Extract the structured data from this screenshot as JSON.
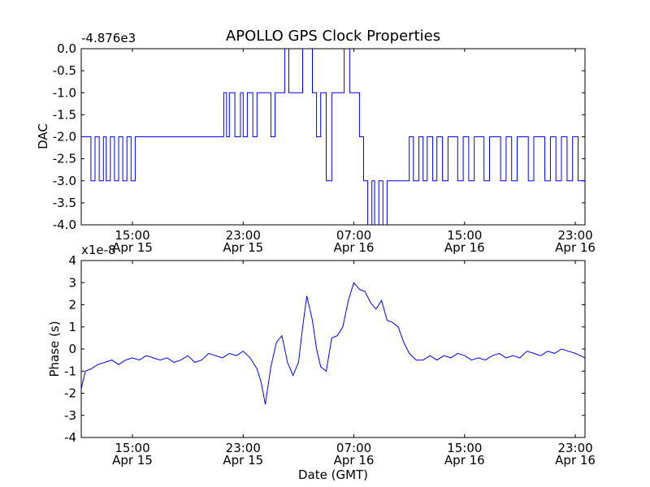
{
  "chart_data": [
    {
      "type": "line",
      "title": "APOLLO GPS Clock Properties",
      "ylabel": "DAC",
      "xlabel": "",
      "offset_label": "-4.876e3",
      "ylim": [
        -4.0,
        0.0
      ],
      "xlim_hours": [
        11.3,
        47.7
      ],
      "yticks": [
        0.0,
        -0.5,
        -1.0,
        -1.5,
        -2.0,
        -2.5,
        -3.0,
        -3.5,
        -4.0
      ],
      "ytick_labels": [
        "0.0",
        "-0.5",
        "-1.0",
        "-1.5",
        "-2.0",
        "-2.5",
        "-3.0",
        "-3.5",
        "-4.0"
      ],
      "xticks_hours": [
        15,
        23,
        31,
        39,
        47
      ],
      "xtick_times": [
        "15:00",
        "23:00",
        "07:00",
        "15:00",
        "23:00"
      ],
      "xtick_dates": [
        "Apr 15",
        "Apr 15",
        "Apr 16",
        "Apr 16",
        "Apr 16"
      ],
      "series": [
        {
          "name": "DAC",
          "color": "#0000ff",
          "x": [
            11.3,
            12.0,
            12.3,
            12.6,
            12.9,
            13.1,
            13.4,
            13.7,
            14.0,
            14.3,
            14.6,
            14.9,
            15.2,
            15.5,
            16.0,
            17.5,
            19.5,
            21.0,
            21.6,
            21.8,
            22.0,
            22.4,
            22.8,
            23.0,
            23.3,
            23.7,
            24.0,
            24.5,
            25.0,
            25.3,
            25.7,
            26.0,
            26.3,
            26.8,
            27.3,
            27.7,
            28.0,
            28.3,
            28.6,
            29.0,
            29.4,
            29.8,
            30.3,
            30.7,
            31.1,
            31.4,
            31.7,
            32.0,
            32.3,
            32.5,
            32.8,
            33.1,
            33.4,
            33.8,
            34.2,
            34.6,
            35.0,
            35.3,
            35.7,
            36.0,
            36.3,
            36.7,
            37.0,
            37.4,
            37.8,
            38.2,
            38.5,
            38.9,
            39.3,
            39.7,
            40.0,
            40.4,
            40.8,
            41.2,
            41.6,
            42.0,
            42.4,
            42.8,
            43.2,
            43.6,
            44.0,
            44.4,
            44.8,
            45.2,
            45.6,
            46.0,
            46.4,
            46.8,
            47.2,
            47.7
          ],
          "y": [
            -2.0,
            -3.0,
            -2.0,
            -3.0,
            -2.0,
            -3.0,
            -2.0,
            -3.0,
            -2.0,
            -3.0,
            -2.0,
            -3.0,
            -2.0,
            -2.0,
            -2.0,
            -2.0,
            -2.0,
            -2.0,
            -1.0,
            -2.0,
            -1.0,
            -2.0,
            -1.0,
            -2.0,
            -1.0,
            -2.0,
            -1.0,
            -1.0,
            -2.0,
            -1.0,
            -1.0,
            0.0,
            -1.0,
            -1.0,
            0.0,
            0.0,
            -1.0,
            -2.0,
            -1.0,
            -3.0,
            -1.0,
            -1.0,
            0.0,
            -1.0,
            -1.0,
            -2.0,
            -3.0,
            -4.0,
            -3.0,
            -4.0,
            -3.0,
            -4.0,
            -3.0,
            -3.0,
            -3.0,
            -3.0,
            -2.0,
            -3.0,
            -2.0,
            -3.0,
            -2.0,
            -3.0,
            -2.0,
            -3.0,
            -2.0,
            -2.0,
            -3.0,
            -2.0,
            -3.0,
            -2.0,
            -2.0,
            -3.0,
            -2.0,
            -2.0,
            -3.0,
            -2.0,
            -3.0,
            -2.0,
            -2.0,
            -3.0,
            -2.0,
            -2.0,
            -3.0,
            -2.0,
            -3.0,
            -2.0,
            -3.0,
            -2.0,
            -3.0,
            -2.0
          ]
        }
      ]
    },
    {
      "type": "line",
      "title": "",
      "ylabel": "Phase (s)",
      "xlabel": "Date (GMT)",
      "offset_label": "x1e-8",
      "ylim": [
        -4,
        4
      ],
      "xlim_hours": [
        11.3,
        47.7
      ],
      "yticks": [
        4,
        3,
        2,
        1,
        0,
        -1,
        -2,
        -3,
        -4
      ],
      "ytick_labels": [
        "4",
        "3",
        "2",
        "1",
        "0",
        "-1",
        "-2",
        "-3",
        "-4"
      ],
      "xticks_hours": [
        15,
        23,
        31,
        39,
        47
      ],
      "xtick_times": [
        "15:00",
        "23:00",
        "07:00",
        "15:00",
        "23:00"
      ],
      "xtick_dates": [
        "Apr 15",
        "Apr 15",
        "Apr 16",
        "Apr 16",
        "Apr 16"
      ],
      "series": [
        {
          "name": "Phase",
          "color": "#0000ff",
          "x": [
            11.3,
            11.6,
            12.0,
            12.5,
            13.0,
            13.5,
            14.0,
            14.5,
            15.0,
            15.5,
            16.0,
            16.5,
            17.0,
            17.5,
            18.0,
            18.5,
            19.0,
            19.5,
            20.0,
            20.5,
            21.0,
            21.5,
            22.0,
            22.5,
            23.0,
            23.5,
            24.0,
            24.3,
            24.6,
            25.0,
            25.4,
            25.8,
            26.2,
            26.6,
            27.0,
            27.3,
            27.6,
            28.0,
            28.3,
            28.6,
            29.0,
            29.4,
            29.8,
            30.2,
            30.6,
            31.0,
            31.4,
            31.8,
            32.2,
            32.6,
            33.0,
            33.4,
            33.8,
            34.2,
            34.6,
            35.0,
            35.5,
            36.0,
            36.5,
            37.0,
            37.5,
            38.0,
            38.5,
            39.0,
            39.5,
            40.0,
            40.5,
            41.0,
            41.5,
            42.0,
            42.5,
            43.0,
            43.5,
            44.0,
            44.5,
            45.0,
            45.5,
            46.0,
            46.5,
            47.0,
            47.7
          ],
          "y": [
            -1.8,
            -1.0,
            -0.9,
            -0.7,
            -0.6,
            -0.5,
            -0.7,
            -0.5,
            -0.4,
            -0.5,
            -0.3,
            -0.4,
            -0.5,
            -0.4,
            -0.6,
            -0.5,
            -0.3,
            -0.6,
            -0.5,
            -0.2,
            -0.3,
            -0.4,
            -0.2,
            -0.3,
            -0.1,
            -0.4,
            -0.9,
            -1.5,
            -2.5,
            -0.8,
            0.3,
            0.6,
            -0.6,
            -1.2,
            -0.6,
            1.0,
            2.4,
            1.3,
            0.0,
            -0.8,
            -1.0,
            0.5,
            0.6,
            1.0,
            2.2,
            3.0,
            2.7,
            2.6,
            2.1,
            1.8,
            2.2,
            1.3,
            1.2,
            1.0,
            0.3,
            -0.2,
            -0.5,
            -0.5,
            -0.3,
            -0.5,
            -0.3,
            -0.4,
            -0.2,
            -0.3,
            -0.5,
            -0.4,
            -0.5,
            -0.3,
            -0.2,
            -0.4,
            -0.3,
            -0.4,
            -0.1,
            -0.2,
            -0.3,
            -0.1,
            -0.2,
            0.0,
            -0.1,
            -0.2,
            -0.4
          ]
        }
      ]
    }
  ]
}
